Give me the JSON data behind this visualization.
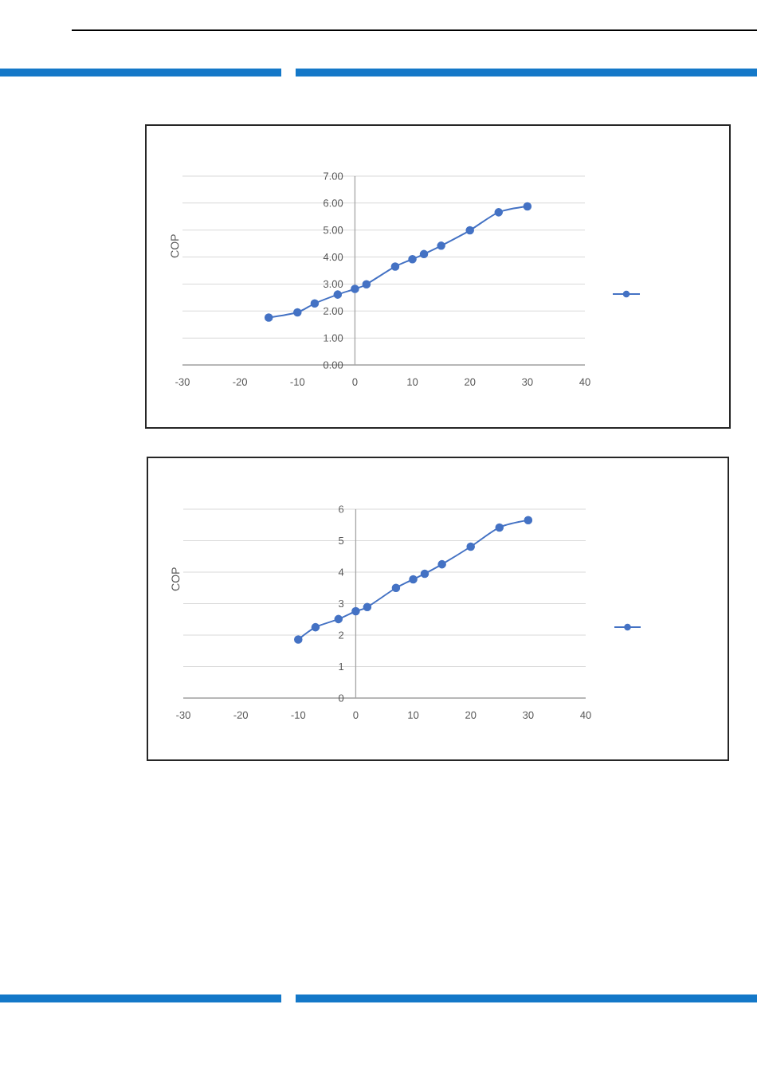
{
  "chart_data": [
    {
      "type": "line",
      "ylabel": "COP",
      "x": [
        -15,
        -10,
        -7,
        -3,
        0,
        2,
        7,
        10,
        12,
        15,
        20,
        25,
        30
      ],
      "series": [
        {
          "color": "#4472c4",
          "values": [
            1.76,
            1.95,
            2.28,
            2.61,
            2.82,
            2.99,
            3.65,
            3.92,
            4.11,
            4.42,
            4.99,
            5.66,
            5.88
          ]
        }
      ],
      "xlim": [
        -30,
        40
      ],
      "xticks": [
        -30,
        -20,
        -10,
        0,
        10,
        20,
        30,
        40
      ],
      "ylim": [
        0,
        7
      ],
      "yticks": [
        {
          "value": 0,
          "label": "0.00"
        },
        {
          "value": 1,
          "label": "1.00"
        },
        {
          "value": 2,
          "label": "2.00"
        },
        {
          "value": 3,
          "label": "3.00"
        },
        {
          "value": 4,
          "label": "4.00"
        },
        {
          "value": 5,
          "label": "5.00"
        },
        {
          "value": 6,
          "label": "6.00"
        },
        {
          "value": 7,
          "label": "7.00"
        }
      ],
      "grid": "y",
      "marker": "circle",
      "line_style": "solid"
    },
    {
      "type": "line",
      "ylabel": "COP",
      "x": [
        -10,
        -7,
        -3,
        0,
        2,
        7,
        10,
        12,
        15,
        20,
        25,
        30
      ],
      "series": [
        {
          "color": "#4472c4",
          "values": [
            1.86,
            2.25,
            2.51,
            2.76,
            2.89,
            3.5,
            3.77,
            3.95,
            4.25,
            4.81,
            5.42,
            5.65
          ]
        }
      ],
      "xlim": [
        -30,
        40
      ],
      "xticks": [
        -30,
        -20,
        -10,
        0,
        10,
        20,
        30,
        40
      ],
      "ylim": [
        0,
        6
      ],
      "yticks": [
        0,
        1,
        2,
        3,
        4,
        5,
        6
      ],
      "grid": "y",
      "marker": "circle",
      "line_style": "solid"
    }
  ]
}
